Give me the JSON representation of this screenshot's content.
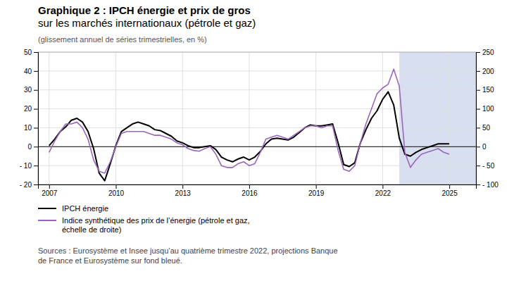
{
  "chart_data": {
    "type": "line",
    "title": "Graphique 2 : IPCH énergie et prix de gros\nsur les marchés internationaux (pétrole et gaz)",
    "subtitle": "(glissement annuel de séries trimestrielles, en %)",
    "annotations": [
      "Sources : Eurosystème et Insee jusqu’au quatrième trimestre 2022, projections Banque\nde France et Eurosystème sur fond bleué."
    ],
    "x": [
      2007.0,
      2007.25,
      2007.5,
      2007.75,
      2008.0,
      2008.25,
      2008.5,
      2008.75,
      2009.0,
      2009.25,
      2009.5,
      2009.75,
      2010.0,
      2010.25,
      2010.5,
      2010.75,
      2011.0,
      2011.25,
      2011.5,
      2011.75,
      2012.0,
      2012.25,
      2012.5,
      2012.75,
      2013.0,
      2013.25,
      2013.5,
      2013.75,
      2014.0,
      2014.25,
      2014.5,
      2014.75,
      2015.0,
      2015.25,
      2015.5,
      2015.75,
      2016.0,
      2016.25,
      2016.5,
      2016.75,
      2017.0,
      2017.25,
      2017.5,
      2017.75,
      2018.0,
      2018.25,
      2018.5,
      2018.75,
      2019.0,
      2019.25,
      2019.5,
      2019.75,
      2020.0,
      2020.25,
      2020.5,
      2020.75,
      2021.0,
      2021.25,
      2021.5,
      2021.75,
      2022.0,
      2022.25,
      2022.5,
      2022.75,
      2023.0,
      2023.25,
      2023.5,
      2023.75,
      2024.0,
      2024.25,
      2024.5,
      2024.75,
      2025.0
    ],
    "series": [
      {
        "name": "IPCH énergie",
        "color": "#000000",
        "values": [
          0.5,
          4.0,
          8.0,
          10.5,
          14.0,
          15.0,
          13.0,
          8.0,
          -1.0,
          -14.0,
          -18.0,
          -9.0,
          0.5,
          8.0,
          10.0,
          12.0,
          13.0,
          12.0,
          11.0,
          9.0,
          8.5,
          7.0,
          5.5,
          3.0,
          2.0,
          0.5,
          -0.5,
          -0.5,
          0.0,
          0.5,
          -1.5,
          -5.5,
          -7.0,
          -8.0,
          -6.5,
          -5.5,
          -7.0,
          -5.5,
          -2.5,
          1.5,
          4.0,
          4.5,
          4.0,
          3.5,
          5.0,
          7.5,
          10.0,
          11.5,
          11.0,
          11.0,
          11.5,
          12.0,
          2.0,
          -9.5,
          -10.5,
          -8.5,
          2.0,
          9.0,
          15.0,
          19.0,
          25.0,
          29.0,
          22.0,
          4.5,
          -4.0,
          -5.0,
          -3.0,
          -1.5,
          -0.5,
          0.5,
          1.5,
          1.5,
          1.5
        ]
      },
      {
        "name": "Indice synthétique des prix de l’énergie (pétrole et gaz,\néchelle de droite)",
        "color": "#9966bb",
        "axis": "y2",
        "values": [
          -15,
          15,
          40,
          60,
          60,
          65,
          50,
          20,
          -35,
          -65,
          -70,
          -40,
          0,
          35,
          40,
          40,
          40,
          40,
          35,
          30,
          30,
          25,
          20,
          10,
          5,
          -5,
          -10,
          -12,
          -5,
          0,
          -20,
          -50,
          -55,
          -55,
          -45,
          -40,
          -50,
          -45,
          -15,
          20,
          25,
          30,
          25,
          20,
          30,
          40,
          50,
          55,
          55,
          50,
          55,
          55,
          -10,
          -60,
          -65,
          -50,
          10,
          60,
          100,
          140,
          155,
          165,
          205,
          160,
          -15,
          -55,
          -35,
          -20,
          -15,
          -10,
          -5,
          -15,
          -20
        ]
      }
    ],
    "shading": {
      "x": [
        2022.75,
        2026.2
      ],
      "color": "#d8dff0"
    },
    "xlim": [
      2006.5,
      2026.2
    ],
    "xticks": [
      2007,
      2010,
      2013,
      2016,
      2019,
      2022,
      2025
    ],
    "ylim": [
      -20,
      50
    ],
    "yticks": [
      {
        "value": -20,
        "label": "- 20"
      },
      {
        "value": -10,
        "label": "- 10"
      },
      0,
      10,
      20,
      30,
      40,
      50
    ],
    "y2lim": [
      -100,
      250
    ],
    "y2ticks": [
      {
        "value": -100,
        "label": "- 100"
      },
      {
        "value": -50,
        "label": "- 50"
      },
      0,
      50,
      100,
      150,
      200,
      250
    ],
    "grid": true,
    "legend": "bottom"
  }
}
